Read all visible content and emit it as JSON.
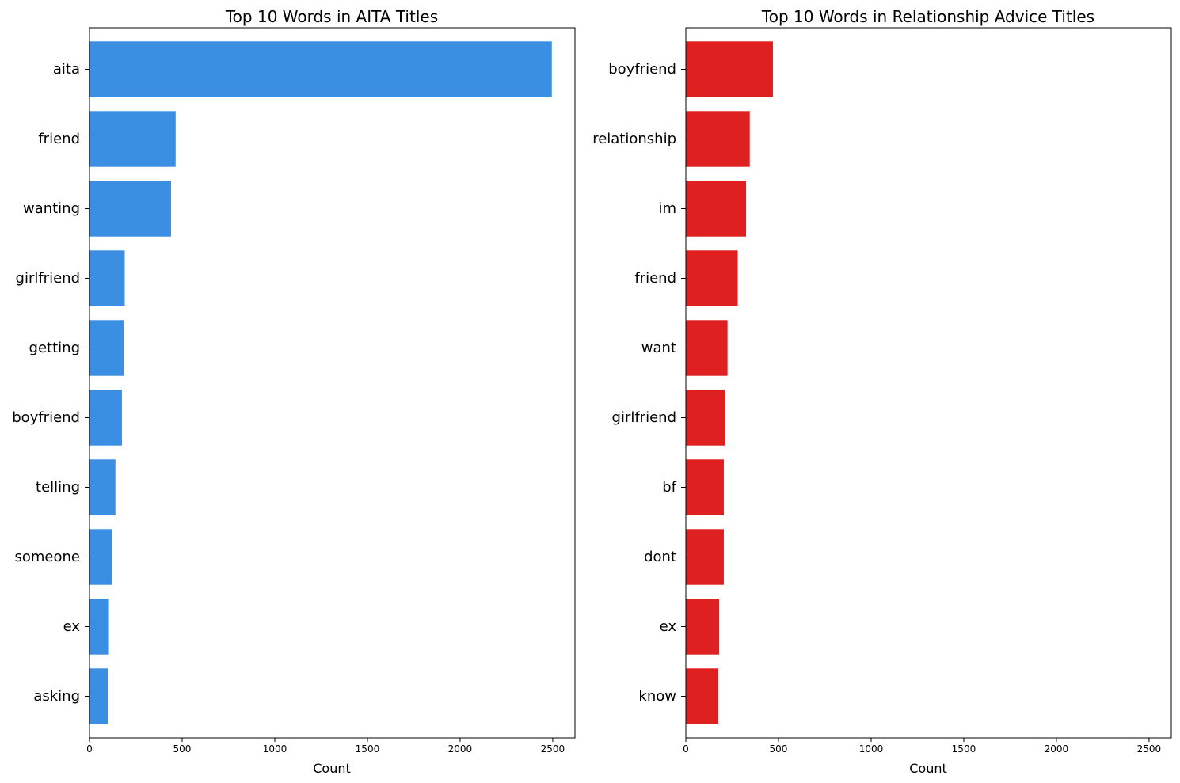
{
  "chart_data": [
    {
      "type": "bar",
      "orientation": "horizontal",
      "title": "Top 10 Words in AITA Titles",
      "xlabel": "Count",
      "ylabel": "",
      "xlim": [
        0,
        2620
      ],
      "xticks": [
        0,
        500,
        1000,
        1500,
        2000,
        2500
      ],
      "grid": false,
      "legend": "none",
      "color": "#3b8fe3",
      "categories": [
        "aita",
        "friend",
        "wanting",
        "girlfriend",
        "getting",
        "boyfriend",
        "telling",
        "someone",
        "ex",
        "asking"
      ],
      "values": [
        2495,
        465,
        440,
        190,
        185,
        175,
        140,
        120,
        105,
        100
      ]
    },
    {
      "type": "bar",
      "orientation": "horizontal",
      "title": "Top 10 Words in Relationship Advice Titles",
      "xlabel": "Count",
      "ylabel": "",
      "xlim": [
        0,
        2620
      ],
      "xticks": [
        0,
        500,
        1000,
        1500,
        2000,
        2500
      ],
      "grid": false,
      "legend": "none",
      "color": "#df2020",
      "categories": [
        "boyfriend",
        "relationship",
        "im",
        "friend",
        "want",
        "girlfriend",
        "bf",
        "dont",
        "ex",
        "know"
      ],
      "values": [
        470,
        345,
        325,
        280,
        225,
        210,
        205,
        205,
        180,
        175
      ]
    }
  ]
}
